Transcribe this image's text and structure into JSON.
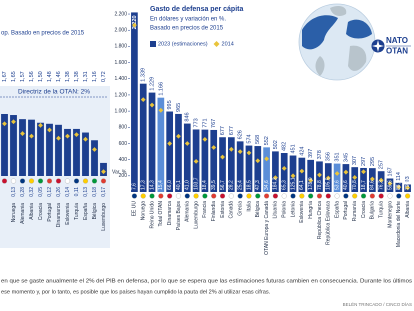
{
  "chart_data": [
    {
      "type": "bar",
      "subtitle": "op. Basado en precios de 2015",
      "guideline": {
        "label": "Directriz de la OTAN: 2%",
        "value": 2
      },
      "categories": [
        null,
        "Noruega",
        "Alemania",
        "Albania",
        "Croacia",
        "Portugal",
        "Dinamarca",
        "Eslovenia",
        "Turquía",
        "España",
        "Bélgica",
        "Luxemburgo"
      ],
      "series": [
        {
          "color": "#1d3f8f",
          "values": [
            1.67,
            1.65,
            1.57,
            1.56,
            1.5,
            1.48,
            1.46,
            1.38,
            1.38,
            1.31,
            1.16,
            0.72
          ],
          "value_labels": [
            "1,67",
            "1,65",
            "1,57",
            "1,56",
            "1,50",
            "1,48",
            "1,46",
            "1,38",
            "1,38",
            "1,31",
            "1,16",
            "0,72"
          ]
        },
        {
          "color": "#e9c43b",
          "values": [
            1.48,
            1.52,
            1.29,
            1.24,
            1.45,
            1.36,
            1.2,
            1.24,
            1.27,
            1.18,
            0.98,
            0.55
          ]
        }
      ],
      "change": {
        "values": [
          null,
          0.13,
          0.28,
          0.32,
          0.05,
          0.12,
          0.26,
          0.14,
          0.11,
          0.13,
          0.18,
          0.17
        ],
        "value_labels": [
          null,
          "0,13",
          "0,28",
          "0,32",
          "0,05",
          "0,12",
          "0,26",
          "0,14",
          "0,11",
          "0,13",
          "0,18",
          "0,17"
        ]
      }
    },
    {
      "type": "bar",
      "title": "Gasto de defensa per cápita",
      "subtitle": [
        "En dólares y variación en %.",
        "Basado en precios de 2015"
      ],
      "change_label": "Var. %",
      "categories": [
        "EE UU",
        "Noruega",
        "Reino Unido",
        "Total OTAN",
        "Dinamarca",
        "Países Bajos",
        "Alemania",
        "Luxemburgo",
        "Francia",
        "Finlandia",
        "Estonia",
        "Canadá",
        "Grecia",
        "Italia",
        "Bélgica",
        "OTAN Europa y Canadá",
        "Lituania",
        "Polonia",
        "Letonia",
        "Eslovenia",
        "Hungría",
        "República Checa",
        "República Eslovaca",
        "España",
        "Portugal",
        "Rumanía",
        "Croacia",
        "Bulgaria",
        "Turquía",
        "Montenegro",
        "Macedonia del Norte",
        "Albania"
      ],
      "ylim": [
        0,
        2250
      ],
      "yticks": [
        200,
        400,
        600,
        800,
        {
          "value": 1000,
          "label": "1.000"
        },
        {
          "value": 1200,
          "label": "1.200"
        },
        {
          "value": 1400,
          "label": "1.400"
        },
        {
          "value": 1600,
          "label": "1.600"
        },
        {
          "value": 1800,
          "label": "1.800"
        },
        {
          "value": 2000,
          "label": "2.000"
        },
        {
          "value": 2200,
          "label": "2.200"
        }
      ],
      "series": [
        {
          "name": "2023 (estimaciones)",
          "color": "#1d3f8f",
          "colors": [
            "#1d3f8f",
            "#1d3f8f",
            "#1d3f8f",
            "#5b8ed8",
            "#1d3f8f",
            "#1d3f8f",
            "#1d3f8f",
            "#1d3f8f",
            "#1d3f8f",
            "#1d3f8f",
            "#1d3f8f",
            "#1d3f8f",
            "#1d3f8f",
            "#1d3f8f",
            "#1d3f8f",
            "#5b8ed8",
            "#1d3f8f",
            "#1d3f8f",
            "#1d3f8f",
            "#1d3f8f",
            "#1d3f8f",
            "#1d3f8f",
            "#1d3f8f",
            "#5b8ed8",
            "#1d3f8f",
            "#1d3f8f",
            "#1d3f8f",
            "#1d3f8f",
            "#1d3f8f",
            "#1d3f8f",
            "#1d3f8f",
            "#1d3f8f"
          ],
          "values": [
            2220,
            1339,
            1229,
            1166,
            995,
            965,
            846,
            773,
            771,
            767,
            677,
            677,
            626,
            574,
            568,
            552,
            502,
            482,
            451,
            424,
            397,
            378,
            356,
            351,
            345,
            307,
            297,
            295,
            257,
            167,
            114,
            93
          ],
          "value_labels": [
            "2.220",
            "1.339",
            "1.229",
            "1.166",
            "995",
            "965",
            "846",
            "773",
            "771",
            "767",
            "677",
            "677",
            "626",
            "574",
            "568",
            "552",
            "502",
            "482",
            "451",
            "424",
            "397",
            "378",
            "356",
            "351",
            "345",
            "307",
            "297",
            "295",
            "257",
            "167",
            "114",
            "93"
          ]
        },
        {
          "name": "2014",
          "color": "#e9c43b",
          "values": [
            2063,
            1142,
            1075,
            1010,
            599,
            689,
            600,
            379,
            651,
            550,
            432,
            528,
            499,
            484,
            386,
            410,
            177,
            292,
            200,
            258,
            143,
            211,
            173,
            229,
            245,
            180,
            250,
            160,
            146,
            105,
            60,
            52
          ]
        }
      ],
      "change": {
        "values": [
          7.6,
          17.3,
          14.3,
          15.4,
          66.0,
          40.1,
          41.0,
          103.7,
          18.4,
          39.5,
          56.7,
          28.2,
          25.4,
          18.5,
          47.3,
          34.6,
          184.3,
          65.3,
          125.1,
          64.1,
          178.0,
          78.8,
          105.5,
          53.6,
          40.6,
          70.8,
          18.7,
          84.6,
          76.3,
          59.6,
          88.5,
          79.6
        ],
        "value_labels": [
          "7,6",
          "17,3",
          "14,3",
          "15,4",
          "66,0",
          "40,1",
          "41,0",
          "103,7",
          "18,4",
          "39,5",
          "56,7",
          "28,2",
          "25,4",
          "18,5",
          "47,3",
          "34,6",
          "184,3",
          "65,3",
          "125,1",
          "64,1",
          "178,0",
          "78,8",
          "105,5",
          "53,6",
          "40,6",
          "70,8",
          "18,7",
          "84,6",
          "76,3",
          "59,6",
          "88,5",
          "79,6"
        ]
      }
    }
  ],
  "logo": {
    "top": "NATO",
    "bottom": "OTAN"
  },
  "note": [
    "en que se gaste anualmente el 2% del PIB en defensa, por lo que se espera que las estimaciones futuras cambien en consecuencia. Durante los últimos",
    "ese momento y, por lo tanto, es posible que los países hayan cumplido la pauta del 2% al utilizar esas cifras."
  ],
  "credit": "BELÉN TRINCADO / CINCO DÍAS"
}
